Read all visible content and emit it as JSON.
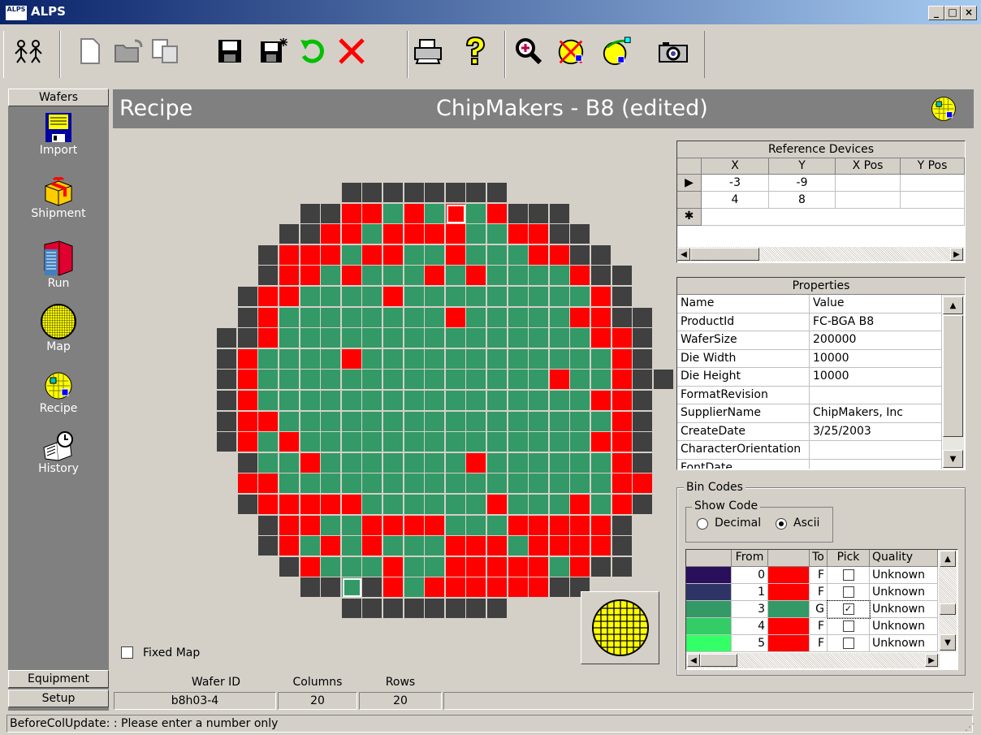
{
  "window": {
    "title": "ALPS",
    "app_icon_text": "ALPS"
  },
  "toolbar": {
    "icons": [
      "people-icon",
      "new-file-icon",
      "open-folder-icon",
      "copy-icon",
      "save-icon",
      "save-as-icon",
      "undo-icon",
      "delete-icon",
      "print-icon",
      "help-icon",
      "zoom-icon",
      "wafer-clear-icon",
      "wafer-select-icon",
      "camera-icon"
    ]
  },
  "sidebar": {
    "top_button": "Wafers",
    "items": [
      {
        "label": "Import",
        "icon": "floppy-icon"
      },
      {
        "label": "Shipment",
        "icon": "gift-box-icon"
      },
      {
        "label": "Run",
        "icon": "books-icon"
      },
      {
        "label": "Map",
        "icon": "wafer-map-icon"
      },
      {
        "label": "Recipe",
        "icon": "recipe-icon"
      },
      {
        "label": "History",
        "icon": "book-clock-icon"
      }
    ],
    "bottom_buttons": [
      "Equipment",
      "Setup"
    ]
  },
  "header": {
    "left": "Recipe",
    "title": "ChipMakers - B8 (edited)"
  },
  "wafer_map": {
    "legend": {
      "R": "#ff0000",
      "G": "#339966",
      "D": "#404040"
    },
    "rows": [
      "........DDDDDDDD........",
      "......DDRRGRGRGRDDD.....",
      ".....DDRRGRRRRGGRRDD....",
      "....DRRRGRRGGRGGGRRDD...",
      "....DRRGRGGGRGRGGGGRDD..",
      "...DRRGGGGRGGGGGGGGGRD..",
      "...DRGGGGGGGGRGGGGGRRDD.",
      "..DDRGGGGGGGGGGGGGGGRRD.",
      "..DRGGGGRGGGGGGGGGGGGRD.",
      "..DRGGGGGGGGGGGGGGRGGRDD",
      "..DRGGGGGGGGGGGGGGGGRRD.",
      "..DRRGGGGGGGGGGGGGGGGRD.",
      "..DRGRGGGGGGGGGGGGGGRRD.",
      "...DGGRGGGGGGGRGGGGGGRD.",
      "...RRGGGGGGGGGGGGGGGGRR.",
      "...DRRRRRGGGGGGRGGGRGRD.",
      "....DRRGGRRRRGGGRRRRRD..",
      "....DRGRGRGGGRRRGRRRRD..",
      ".....DRGGGRGGRRRRRGRDD..",
      "......DDGDRGRRRRRRDD....",
      "........DDDDDDDD........"
    ],
    "highlighted": [
      [
        1,
        13
      ],
      [
        19,
        8
      ]
    ]
  },
  "fixed_map": {
    "label": "Fixed Map",
    "checked": false
  },
  "footer": {
    "wafer_id": {
      "label": "Wafer ID",
      "value": "b8h03-4"
    },
    "columns": {
      "label": "Columns",
      "value": "20"
    },
    "rows": {
      "label": "Rows",
      "value": "20"
    }
  },
  "reference_devices": {
    "title": "Reference Devices",
    "columns": [
      "X",
      "Y",
      "X Pos",
      "Y Pos"
    ],
    "rows": [
      [
        "-3",
        "-9",
        "",
        ""
      ],
      [
        "4",
        "8",
        "",
        ""
      ]
    ],
    "new_row_marker": "✱"
  },
  "properties": {
    "title": "Properties",
    "columns": [
      "Name",
      "Value"
    ],
    "rows": [
      [
        "ProductId",
        "FC-BGA B8"
      ],
      [
        "WaferSize",
        "200000"
      ],
      [
        "Die Width",
        "10000"
      ],
      [
        "Die Height",
        "10000"
      ],
      [
        "FormatRevision",
        ""
      ],
      [
        "SupplierName",
        "ChipMakers, Inc"
      ],
      [
        "CreateDate",
        "3/25/2003"
      ],
      [
        "CharacterOrientation",
        ""
      ],
      [
        "FontDate",
        ""
      ]
    ]
  },
  "bin_codes": {
    "title": "Bin Codes",
    "show_code": {
      "label": "Show Code",
      "options": [
        "Decimal",
        "Ascii"
      ],
      "selected": "Ascii"
    },
    "columns": [
      "",
      "From",
      "",
      "To",
      "Pick",
      "Quality"
    ],
    "rows": [
      {
        "from_color": "#2a0f5c",
        "from": "0",
        "to_color": "#ff0000",
        "to": "F",
        "pick": false,
        "quality": "Unknown"
      },
      {
        "from_color": "#2e3566",
        "from": "1",
        "to_color": "#ff0000",
        "to": "F",
        "pick": false,
        "quality": "Unknown"
      },
      {
        "from_color": "#339966",
        "from": "3",
        "to_color": "#339966",
        "to": "G",
        "pick": true,
        "quality": "Unknown"
      },
      {
        "from_color": "#33cc66",
        "from": "4",
        "to_color": "#ff0000",
        "to": "F",
        "pick": false,
        "quality": "Unknown"
      },
      {
        "from_color": "#33ff66",
        "from": "5",
        "to_color": "#ff0000",
        "to": "F",
        "pick": false,
        "quality": "Unknown"
      }
    ]
  },
  "status_bar": {
    "text": "BeforeColUpdate: : Please enter a number only"
  }
}
